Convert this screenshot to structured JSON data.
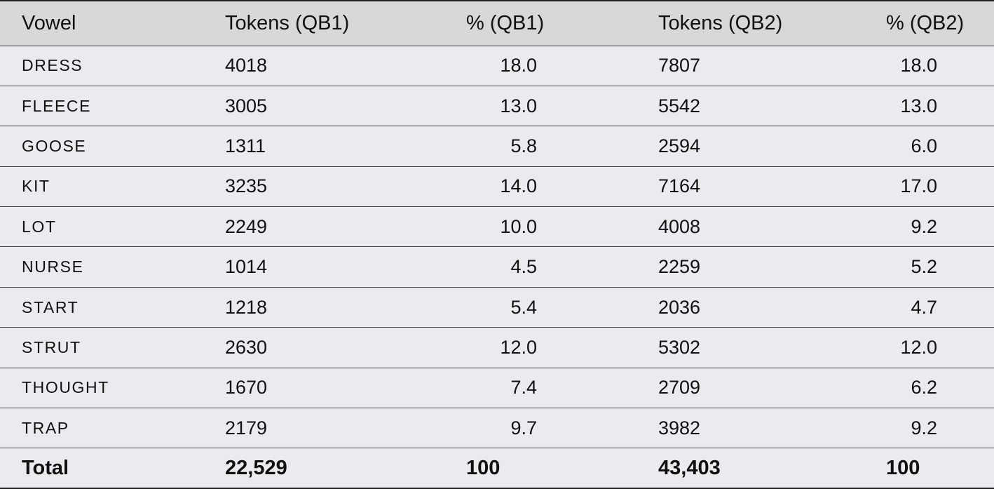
{
  "table": {
    "headers": [
      "Vowel",
      "Tokens (QB1)",
      "% (QB1)",
      "Tokens (QB2)",
      "% (QB2)"
    ],
    "rows": [
      {
        "vowel": "DRESS",
        "tokens_qb1": "4018",
        "pct_qb1": "18.0",
        "tokens_qb2": "7807",
        "pct_qb2": "18.0"
      },
      {
        "vowel": "FLEECE",
        "tokens_qb1": "3005",
        "pct_qb1": "13.0",
        "tokens_qb2": "5542",
        "pct_qb2": "13.0"
      },
      {
        "vowel": "GOOSE",
        "tokens_qb1": "1311",
        "pct_qb1": "5.8",
        "tokens_qb2": "2594",
        "pct_qb2": "6.0"
      },
      {
        "vowel": "KIT",
        "tokens_qb1": "3235",
        "pct_qb1": "14.0",
        "tokens_qb2": "7164",
        "pct_qb2": "17.0"
      },
      {
        "vowel": "LOT",
        "tokens_qb1": "2249",
        "pct_qb1": "10.0",
        "tokens_qb2": "4008",
        "pct_qb2": "9.2"
      },
      {
        "vowel": "NURSE",
        "tokens_qb1": "1014",
        "pct_qb1": "4.5",
        "tokens_qb2": "2259",
        "pct_qb2": "5.2"
      },
      {
        "vowel": "START",
        "tokens_qb1": "1218",
        "pct_qb1": "5.4",
        "tokens_qb2": "2036",
        "pct_qb2": "4.7"
      },
      {
        "vowel": "STRUT",
        "tokens_qb1": "2630",
        "pct_qb1": "12.0",
        "tokens_qb2": "5302",
        "pct_qb2": "12.0"
      },
      {
        "vowel": "THOUGHT",
        "tokens_qb1": "1670",
        "pct_qb1": "7.4",
        "tokens_qb2": "2709",
        "pct_qb2": "6.2"
      },
      {
        "vowel": "TRAP",
        "tokens_qb1": "2179",
        "pct_qb1": "9.7",
        "tokens_qb2": "3982",
        "pct_qb2": "9.2"
      }
    ],
    "total": {
      "label": "Total",
      "tokens_qb1": "22,529",
      "pct_qb1": "100",
      "tokens_qb2": "43,403",
      "pct_qb2": "100"
    }
  }
}
